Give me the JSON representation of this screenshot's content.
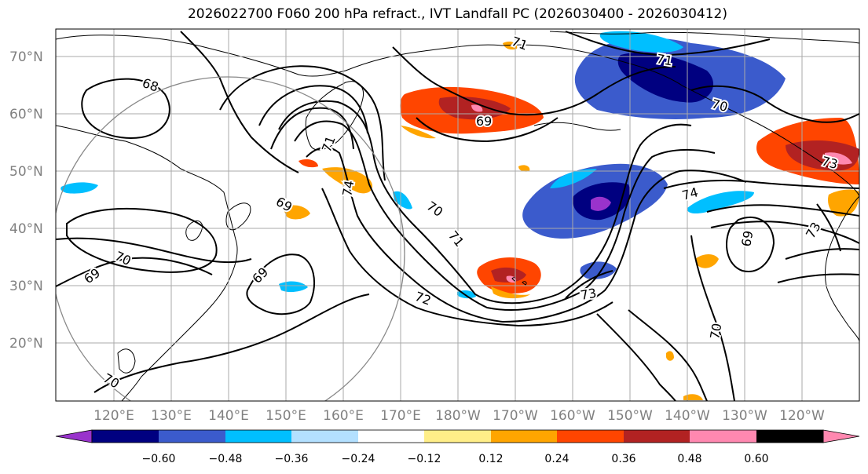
{
  "title": "2026022700 F060 200 hPa refract., IVT Landfall PC (2026030400 - 2026030412)",
  "latitude_labels": [
    "70°N",
    "60°N",
    "50°N",
    "40°N",
    "30°N",
    "20°N"
  ],
  "longitude_labels": [
    "120°E",
    "130°E",
    "140°E",
    "150°E",
    "160°E",
    "170°E",
    "180°W",
    "170°W",
    "160°W",
    "150°W",
    "140°W",
    "130°W",
    "120°W"
  ],
  "colorbar": {
    "colors": [
      "#9933cc",
      "#000080",
      "#3b5bcc",
      "#00bfff",
      "#b3e0ff",
      "#ffffff",
      "#ffee88",
      "#ffa500",
      "#ff4500",
      "#b22222",
      "#ff88b0"
    ],
    "tick_labels": [
      "−0.60",
      "−0.48",
      "−0.36",
      "−0.24",
      "−0.12",
      "0.12",
      "0.24",
      "0.36",
      "0.48",
      "0.60"
    ]
  },
  "contour_labels": [
    "68",
    "71",
    "71",
    "70",
    "69",
    "73",
    "74",
    "73",
    "69",
    "70",
    "69",
    "70",
    "69",
    "74",
    "70",
    "71",
    "72",
    "73",
    "69",
    "70",
    "71"
  ],
  "colors": {
    "contour": "#000000",
    "coast": "#000000",
    "grid": "#aaaaaa",
    "circle": "#888888"
  }
}
